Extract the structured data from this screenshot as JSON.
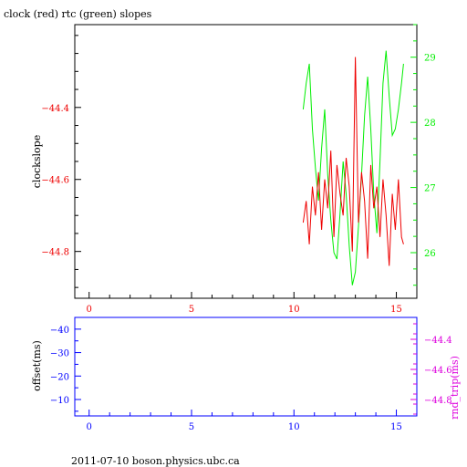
{
  "title": "clock (red) rtc (green) slopes",
  "footer": "2011-07-10 boson.physics.ubc.ca",
  "colors": {
    "red": "#ee0000",
    "green": "#00ee00",
    "blue": "#0000ff",
    "magenta": "#dd00dd",
    "black": "#000000"
  },
  "chart_data": [
    {
      "type": "line",
      "xlim": [
        -0.7,
        16
      ],
      "x_ticks": [
        0,
        5,
        10,
        15
      ],
      "x_tick_labels": [
        "0",
        "5",
        "10",
        "15"
      ],
      "left_axis": {
        "ylabel": "clockslope",
        "ylim": [
          -44.93,
          -44.17
        ],
        "ticks": [
          -44.4,
          -44.6,
          -44.8
        ],
        "tick_labels": [
          "−44.4",
          "−44.6",
          "−44.8"
        ]
      },
      "right_axis": {
        "ylim": [
          25.3,
          29.5
        ],
        "ticks": [
          29,
          28,
          27,
          26
        ],
        "tick_labels": [
          "29",
          "28",
          "27",
          "26"
        ]
      },
      "series": [
        {
          "color": "red",
          "axis": "left",
          "x": [
            10.45,
            10.6,
            10.75,
            10.9,
            11.05,
            11.2,
            11.35,
            11.5,
            11.65,
            11.8,
            11.95,
            12.1,
            12.25,
            12.4,
            12.55,
            12.7,
            12.85,
            13.0,
            13.15,
            13.3,
            13.45,
            13.6,
            13.75,
            13.9,
            14.05,
            14.2,
            14.35,
            14.5,
            14.65,
            14.8,
            14.95,
            15.1,
            15.25,
            15.35
          ],
          "y": [
            -44.72,
            -44.66,
            -44.78,
            -44.62,
            -44.7,
            -44.58,
            -44.74,
            -44.6,
            -44.68,
            -44.52,
            -44.76,
            -44.56,
            -44.64,
            -44.7,
            -44.54,
            -44.62,
            -44.8,
            -44.26,
            -44.72,
            -44.58,
            -44.66,
            -44.82,
            -44.56,
            -44.68,
            -44.62,
            -44.76,
            -44.6,
            -44.7,
            -44.84,
            -44.64,
            -44.74,
            -44.6,
            -44.76,
            -44.78
          ]
        },
        {
          "color": "green",
          "axis": "right",
          "x": [
            10.45,
            10.6,
            10.75,
            10.9,
            11.05,
            11.2,
            11.35,
            11.5,
            11.65,
            11.8,
            11.95,
            12.1,
            12.25,
            12.4,
            12.55,
            12.7,
            12.85,
            13.0,
            13.15,
            13.3,
            13.45,
            13.6,
            13.75,
            13.9,
            14.05,
            14.2,
            14.35,
            14.5,
            14.65,
            14.8,
            14.95,
            15.1,
            15.25,
            15.35
          ],
          "y": [
            28.2,
            28.6,
            28.9,
            27.9,
            27.3,
            26.8,
            27.6,
            28.2,
            27.2,
            26.5,
            26.0,
            25.9,
            26.6,
            27.4,
            26.9,
            26.1,
            25.5,
            25.7,
            26.4,
            27.2,
            28.1,
            28.7,
            27.9,
            26.9,
            26.3,
            27.4,
            28.6,
            29.1,
            28.4,
            27.8,
            27.9,
            28.2,
            28.6,
            28.9
          ]
        }
      ]
    },
    {
      "type": "line",
      "xlim": [
        -0.7,
        16
      ],
      "x_ticks": [
        0,
        5,
        10,
        15
      ],
      "x_tick_labels": [
        "0",
        "5",
        "10",
        "15"
      ],
      "left_axis": {
        "ylabel": "offset(ms)",
        "ylim": [
          -3,
          -45
        ],
        "ticks": [
          -40,
          -30,
          -20,
          -10
        ],
        "tick_labels": [
          "−40",
          "−30",
          "−20",
          "−10"
        ]
      },
      "right_axis": {
        "ylabel": "rnd_trip(ms)",
        "ticks": [
          -44.4,
          -44.6,
          -44.8
        ],
        "tick_labels": [
          "−44.4",
          "−44.6",
          "−44.8"
        ]
      },
      "series": []
    }
  ]
}
